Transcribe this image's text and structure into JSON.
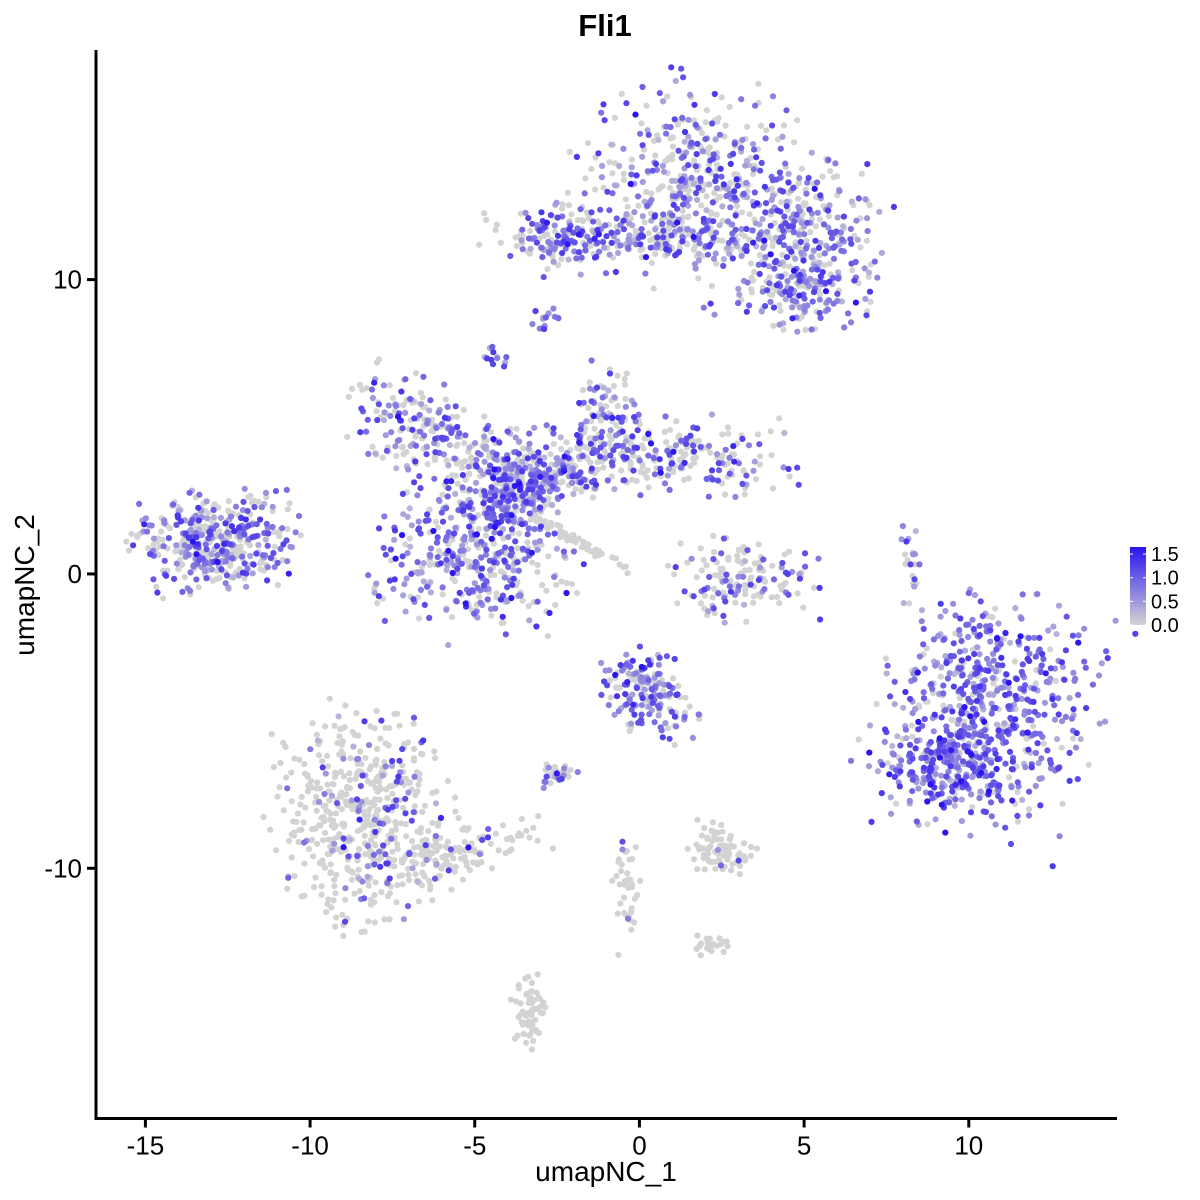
{
  "chart_data": {
    "type": "scatter",
    "title": "Fli1",
    "xlabel": "umapNC_1",
    "ylabel": "umapNC_2",
    "xlim": [
      -16.5,
      14.5
    ],
    "ylim": [
      -18.5,
      17.8
    ],
    "x_ticks": [
      {
        "value": -15,
        "label": "-15"
      },
      {
        "value": -10,
        "label": "-10"
      },
      {
        "value": -5,
        "label": "-5"
      },
      {
        "value": 0,
        "label": "0"
      },
      {
        "value": 5,
        "label": "5"
      },
      {
        "value": 10,
        "label": "10"
      }
    ],
    "y_ticks": [
      {
        "value": 10,
        "label": "10"
      },
      {
        "value": 0,
        "label": "0"
      },
      {
        "value": -10,
        "label": "-10"
      }
    ],
    "grid": false,
    "colors": {
      "low": "#d3d3d3",
      "high": "#2a14f0",
      "axis": "#000000",
      "background": "#ffffff"
    },
    "legend": {
      "placement": "right",
      "type": "colorbar",
      "min": 0,
      "max": 1.65,
      "ticks": [
        {
          "value": 1.5,
          "label": "1.5"
        },
        {
          "value": 1.0,
          "label": "1.0"
        },
        {
          "value": 0.5,
          "label": "0.5"
        },
        {
          "value": 0.0,
          "label": "0.0"
        }
      ]
    },
    "clusters": [
      {
        "name": "top-right",
        "cx": 1.8,
        "cy": 13.2,
        "sx": 1.7,
        "sy": 1.6,
        "rot": -0.2,
        "n": 480,
        "expr": 0.55
      },
      {
        "name": "top-right-lobe",
        "cx": 4.8,
        "cy": 11.4,
        "sx": 1.3,
        "sy": 1.1,
        "rot": 0.0,
        "n": 280,
        "expr": 0.7
      },
      {
        "name": "top-right-tail",
        "cx": 5.0,
        "cy": 9.5,
        "sx": 0.9,
        "sy": 0.6,
        "rot": 0.0,
        "n": 120,
        "expr": 0.7
      },
      {
        "name": "top-middle-band",
        "cx": -0.5,
        "cy": 11.4,
        "sx": 2.0,
        "sy": 0.4,
        "rot": 0.0,
        "n": 180,
        "expr": 0.45
      },
      {
        "name": "top-left-arm",
        "cx": -2.4,
        "cy": 11.5,
        "sx": 0.6,
        "sy": 0.6,
        "rot": 0.0,
        "n": 90,
        "expr": 0.75
      },
      {
        "name": "small-top",
        "cx": -2.8,
        "cy": 8.6,
        "sx": 0.2,
        "sy": 0.25,
        "rot": 0.0,
        "n": 14,
        "expr": 0.9
      },
      {
        "name": "small-top-2",
        "cx": -4.4,
        "cy": 7.3,
        "sx": 0.2,
        "sy": 0.2,
        "rot": 0.0,
        "n": 12,
        "expr": 0.8
      },
      {
        "name": "mid-left-arm",
        "cx": -6.8,
        "cy": 5.0,
        "sx": 1.0,
        "sy": 0.7,
        "rot": -0.5,
        "n": 160,
        "expr": 0.5
      },
      {
        "name": "mid-center",
        "cx": -4.2,
        "cy": 3.6,
        "sx": 1.1,
        "sy": 0.8,
        "rot": 0.0,
        "n": 220,
        "expr": 0.45
      },
      {
        "name": "mid-diagonal",
        "cx": -2.5,
        "cy": 3.4,
        "sx": 1.3,
        "sy": 0.5,
        "rot": 0.6,
        "n": 200,
        "expr": 0.65
      },
      {
        "name": "mid-right",
        "cx": 0.8,
        "cy": 4.0,
        "sx": 1.8,
        "sy": 0.6,
        "rot": 0.0,
        "n": 220,
        "expr": 0.4
      },
      {
        "name": "mid-right-top",
        "cx": -1.1,
        "cy": 5.4,
        "sx": 0.5,
        "sy": 0.8,
        "rot": 0.0,
        "n": 70,
        "expr": 0.55
      },
      {
        "name": "mid-lower-blob",
        "cx": -5.0,
        "cy": 0.7,
        "sx": 1.4,
        "sy": 1.3,
        "rot": 0.0,
        "n": 380,
        "expr": 0.6
      },
      {
        "name": "mid-stem",
        "cx": -4.2,
        "cy": 2.4,
        "sx": 0.5,
        "sy": 0.8,
        "rot": 0.0,
        "n": 110,
        "expr": 0.85
      },
      {
        "name": "thin-streak",
        "cx": -2.0,
        "cy": 1.2,
        "sx": 0.9,
        "sy": 0.1,
        "rot": -0.6,
        "n": 60,
        "expr": 0.0
      },
      {
        "name": "left-cluster",
        "cx": -12.8,
        "cy": 1.1,
        "sx": 1.2,
        "sy": 0.75,
        "rot": 0.08,
        "n": 420,
        "expr": 0.55
      },
      {
        "name": "center-ring",
        "cx": 3.1,
        "cy": -0.2,
        "sx": 1.0,
        "sy": 0.65,
        "rot": 0.0,
        "n": 140,
        "expr": 0.35
      },
      {
        "name": "center-small",
        "cx": 0.2,
        "cy": -3.9,
        "sx": 0.6,
        "sy": 0.6,
        "rot": 0.0,
        "n": 140,
        "expr": 0.7
      },
      {
        "name": "center-small-tail",
        "cx": 1.0,
        "cy": -4.9,
        "sx": 0.35,
        "sy": 0.5,
        "rot": 0.0,
        "n": 26,
        "expr": 0.6
      },
      {
        "name": "small-pair",
        "cx": -2.5,
        "cy": -6.8,
        "sx": 0.3,
        "sy": 0.2,
        "rot": 0.0,
        "n": 30,
        "expr": 0.4
      },
      {
        "name": "right-cluster",
        "cx": 10.5,
        "cy": -4.8,
        "sx": 1.5,
        "sy": 1.9,
        "rot": -0.3,
        "n": 700,
        "expr": 0.85
      },
      {
        "name": "right-lower",
        "cx": 9.3,
        "cy": -6.4,
        "sx": 0.8,
        "sy": 0.5,
        "rot": 0.0,
        "n": 120,
        "expr": 1.0
      },
      {
        "name": "bottom-left",
        "cx": -8.3,
        "cy": -8.2,
        "sx": 1.3,
        "sy": 1.7,
        "rot": 0.1,
        "n": 520,
        "expr": 0.18
      },
      {
        "name": "bottom-left-tail",
        "cx": -5.8,
        "cy": -9.6,
        "sx": 1.3,
        "sy": 0.4,
        "rot": 0.3,
        "n": 130,
        "expr": 0.08
      },
      {
        "name": "bottom-center",
        "cx": 2.5,
        "cy": -9.3,
        "sx": 0.5,
        "sy": 0.4,
        "rot": 0.0,
        "n": 80,
        "expr": 0.05
      },
      {
        "name": "bottom-string",
        "cx": -0.4,
        "cy": -10.8,
        "sx": 0.2,
        "sy": 0.9,
        "rot": 0.0,
        "n": 40,
        "expr": 0.02
      },
      {
        "name": "bottom-lower",
        "cx": -3.3,
        "cy": -14.8,
        "sx": 0.25,
        "sy": 0.6,
        "rot": 0.0,
        "n": 60,
        "expr": 0.0
      },
      {
        "name": "bottom-lower-right",
        "cx": 2.2,
        "cy": -12.6,
        "sx": 0.3,
        "sy": 0.15,
        "rot": 0.0,
        "n": 20,
        "expr": 0.0
      },
      {
        "name": "right-thin",
        "cx": 8.3,
        "cy": 0.3,
        "sx": 0.15,
        "sy": 0.6,
        "rot": 0.0,
        "n": 20,
        "expr": 0.6
      }
    ]
  }
}
